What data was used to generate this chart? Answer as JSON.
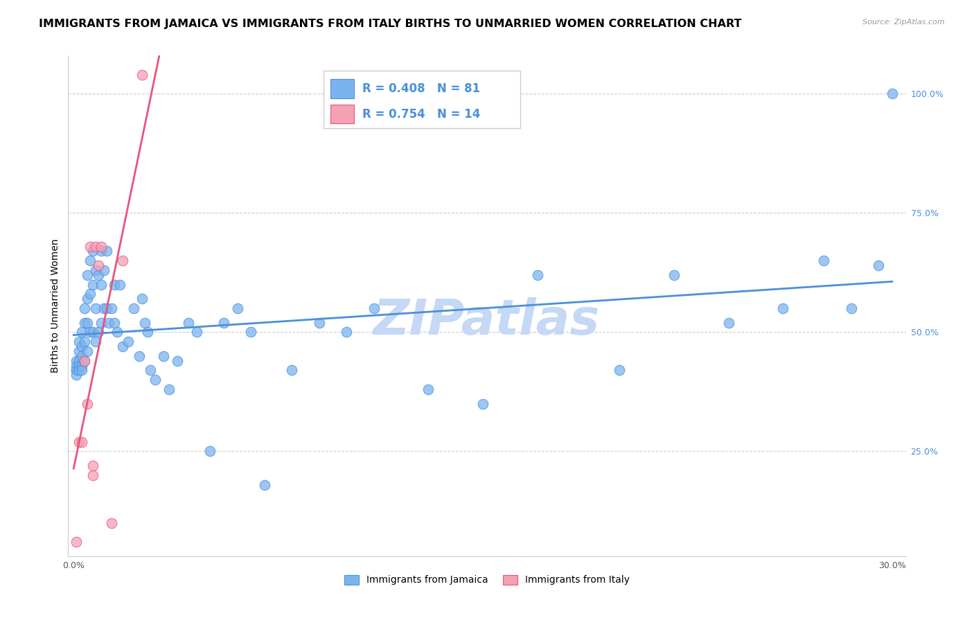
{
  "title": "IMMIGRANTS FROM JAMAICA VS IMMIGRANTS FROM ITALY BIRTHS TO UNMARRIED WOMEN CORRELATION CHART",
  "source": "Source: ZipAtlas.com",
  "ylabel": "Births to Unmarried Women",
  "x_ticks": [
    0.0,
    0.05,
    0.1,
    0.15,
    0.2,
    0.25,
    0.3
  ],
  "y_ticks_right": [
    0.25,
    0.5,
    0.75,
    1.0
  ],
  "y_tick_labels_right": [
    "25.0%",
    "50.0%",
    "75.0%",
    "100.0%"
  ],
  "xlim": [
    -0.002,
    0.305
  ],
  "ylim": [
    0.03,
    1.08
  ],
  "legend_jamaica": "Immigrants from Jamaica",
  "legend_italy": "Immigrants from Italy",
  "r_jamaica": "0.408",
  "n_jamaica": "81",
  "r_italy": "0.754",
  "n_italy": "14",
  "color_jamaica": "#7bb3f0",
  "color_italy": "#f4a0b5",
  "color_jamaica_line": "#4a90d9",
  "color_italy_line": "#e8547a",
  "color_r_value": "#4a90d9",
  "watermark": "ZIPatlas",
  "watermark_color": "#c5d8f5",
  "title_fontsize": 11.5,
  "axis_label_fontsize": 10,
  "tick_fontsize": 9,
  "jamaica_points_x": [
    0.001,
    0.001,
    0.001,
    0.001,
    0.001,
    0.002,
    0.002,
    0.002,
    0.002,
    0.002,
    0.003,
    0.003,
    0.003,
    0.003,
    0.003,
    0.004,
    0.004,
    0.004,
    0.004,
    0.005,
    0.005,
    0.005,
    0.005,
    0.006,
    0.006,
    0.006,
    0.007,
    0.007,
    0.007,
    0.008,
    0.008,
    0.008,
    0.009,
    0.009,
    0.01,
    0.01,
    0.01,
    0.011,
    0.011,
    0.012,
    0.012,
    0.013,
    0.014,
    0.015,
    0.015,
    0.016,
    0.017,
    0.018,
    0.02,
    0.022,
    0.024,
    0.025,
    0.026,
    0.027,
    0.028,
    0.03,
    0.033,
    0.035,
    0.038,
    0.042,
    0.045,
    0.05,
    0.055,
    0.06,
    0.065,
    0.07,
    0.08,
    0.09,
    0.1,
    0.11,
    0.13,
    0.15,
    0.17,
    0.2,
    0.22,
    0.24,
    0.26,
    0.275,
    0.285,
    0.295,
    0.3
  ],
  "jamaica_points_y": [
    0.44,
    0.43,
    0.42,
    0.42,
    0.41,
    0.48,
    0.46,
    0.44,
    0.43,
    0.42,
    0.5,
    0.47,
    0.45,
    0.43,
    0.42,
    0.55,
    0.52,
    0.48,
    0.44,
    0.62,
    0.57,
    0.52,
    0.46,
    0.65,
    0.58,
    0.5,
    0.67,
    0.6,
    0.5,
    0.63,
    0.55,
    0.48,
    0.62,
    0.5,
    0.67,
    0.6,
    0.52,
    0.63,
    0.55,
    0.67,
    0.55,
    0.52,
    0.55,
    0.6,
    0.52,
    0.5,
    0.6,
    0.47,
    0.48,
    0.55,
    0.45,
    0.57,
    0.52,
    0.5,
    0.42,
    0.4,
    0.45,
    0.38,
    0.44,
    0.52,
    0.5,
    0.25,
    0.52,
    0.55,
    0.5,
    0.18,
    0.42,
    0.52,
    0.5,
    0.55,
    0.38,
    0.35,
    0.62,
    0.42,
    0.62,
    0.52,
    0.55,
    0.65,
    0.55,
    0.64,
    1.0
  ],
  "italy_points_x": [
    0.001,
    0.002,
    0.003,
    0.004,
    0.005,
    0.006,
    0.007,
    0.007,
    0.008,
    0.009,
    0.01,
    0.014,
    0.018,
    0.025
  ],
  "italy_points_y": [
    0.06,
    0.27,
    0.27,
    0.44,
    0.35,
    0.68,
    0.2,
    0.22,
    0.68,
    0.64,
    0.68,
    0.1,
    0.65,
    1.04
  ],
  "italy_line_x": [
    0.0,
    0.033
  ],
  "jamaica_line_x": [
    0.0,
    0.3
  ]
}
